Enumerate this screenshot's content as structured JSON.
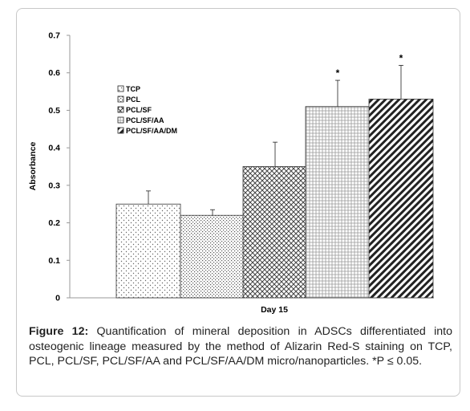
{
  "chart_data": {
    "type": "bar",
    "categories": [
      "TCP",
      "PCL",
      "PCL/SF",
      "PCL/SF/AA",
      "PCL/SF/AA/DM"
    ],
    "values": [
      0.25,
      0.22,
      0.35,
      0.51,
      0.53
    ],
    "errors": [
      0.035,
      0.015,
      0.065,
      0.07,
      0.09
    ],
    "significance": [
      "",
      "",
      "",
      "*",
      "*"
    ],
    "xlabel": "Day 15",
    "ylabel": "Absorbance",
    "ylim": [
      0,
      0.7
    ],
    "yticks": [
      "0",
      "0.1",
      "0.2",
      "0.3",
      "0.4",
      "0.5",
      "0.6",
      "0.7"
    ],
    "legend": [
      "TCP",
      "PCL",
      "PCL/SF",
      "PCL/SF/AA",
      "PCL/SF/AA/DM"
    ],
    "legend_position": "upper-left",
    "grid": false
  },
  "caption": {
    "label": "Figure 12:",
    "text": "Quantification of mineral deposition in ADSCs differentiated into osteogenic lineage measured by the method of Alizarin Red-S staining on TCP, PCL, PCL/SF, PCL/SF/AA and PCL/SF/AA/DM micro/nanoparticles. *P ≤ 0.05."
  }
}
